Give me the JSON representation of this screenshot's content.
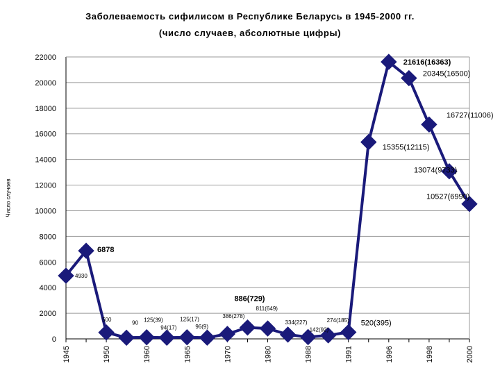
{
  "chart_data": {
    "type": "line",
    "title": "Заболеваемость сифилисом в Республике Беларусь в 1945-2000 гг.",
    "subtitle": "(число случаев, абсолютные цифры)",
    "ylabel": "Число случаев",
    "xlabel": "",
    "ylim": [
      0,
      22000
    ],
    "yticks": [
      0,
      2000,
      4000,
      6000,
      8000,
      10000,
      12000,
      14000,
      16000,
      18000,
      20000,
      22000
    ],
    "x_tick_labels": [
      "1945",
      "1950",
      "1960",
      "1965",
      "1970",
      "1980",
      "1988",
      "1991",
      "1996",
      "1998",
      "2000"
    ],
    "grid": true,
    "color": "#1a1a7a",
    "points": [
      {
        "y": 4930,
        "label": "4930",
        "bold": false,
        "small": true
      },
      {
        "y": 6878,
        "label": "6878",
        "bold": true,
        "small": false
      },
      {
        "y": 500,
        "label": "500",
        "bold": false,
        "small": true
      },
      {
        "y": 90,
        "label": "90",
        "bold": false,
        "small": true
      },
      {
        "y": 125,
        "label": "125(39)",
        "bold": false,
        "small": true
      },
      {
        "y": 94,
        "label": "94(17)",
        "bold": false,
        "small": true
      },
      {
        "y": 125,
        "label": "125(17)",
        "bold": false,
        "small": true
      },
      {
        "y": 96,
        "label": "96(9)",
        "bold": false,
        "small": true
      },
      {
        "y": 386,
        "label": "386(278)",
        "bold": false,
        "small": true
      },
      {
        "y": 886,
        "label": "886(729)",
        "bold": true,
        "small": false
      },
      {
        "y": 811,
        "label": "811(649)",
        "bold": false,
        "small": true
      },
      {
        "y": 334,
        "label": "334(227)",
        "bold": false,
        "small": true
      },
      {
        "y": 142,
        "label": "142(92)",
        "bold": false,
        "small": true
      },
      {
        "y": 274,
        "label": "274(185)",
        "bold": false,
        "small": true
      },
      {
        "y": 520,
        "label": "520(395)",
        "bold": false,
        "small": false
      },
      {
        "y": 15355,
        "label": "15355(12115)",
        "bold": false,
        "small": false
      },
      {
        "y": 21616,
        "label": "21616(16363)",
        "bold": true,
        "small": false
      },
      {
        "y": 20345,
        "label": "20345(16500)",
        "bold": false,
        "small": false
      },
      {
        "y": 16727,
        "label": "16727(11006)",
        "bold": false,
        "small": false
      },
      {
        "y": 13074,
        "label": "13074(9733)",
        "bold": false,
        "small": false
      },
      {
        "y": 10527,
        "label": "10527(6990)",
        "bold": false,
        "small": false
      }
    ]
  }
}
